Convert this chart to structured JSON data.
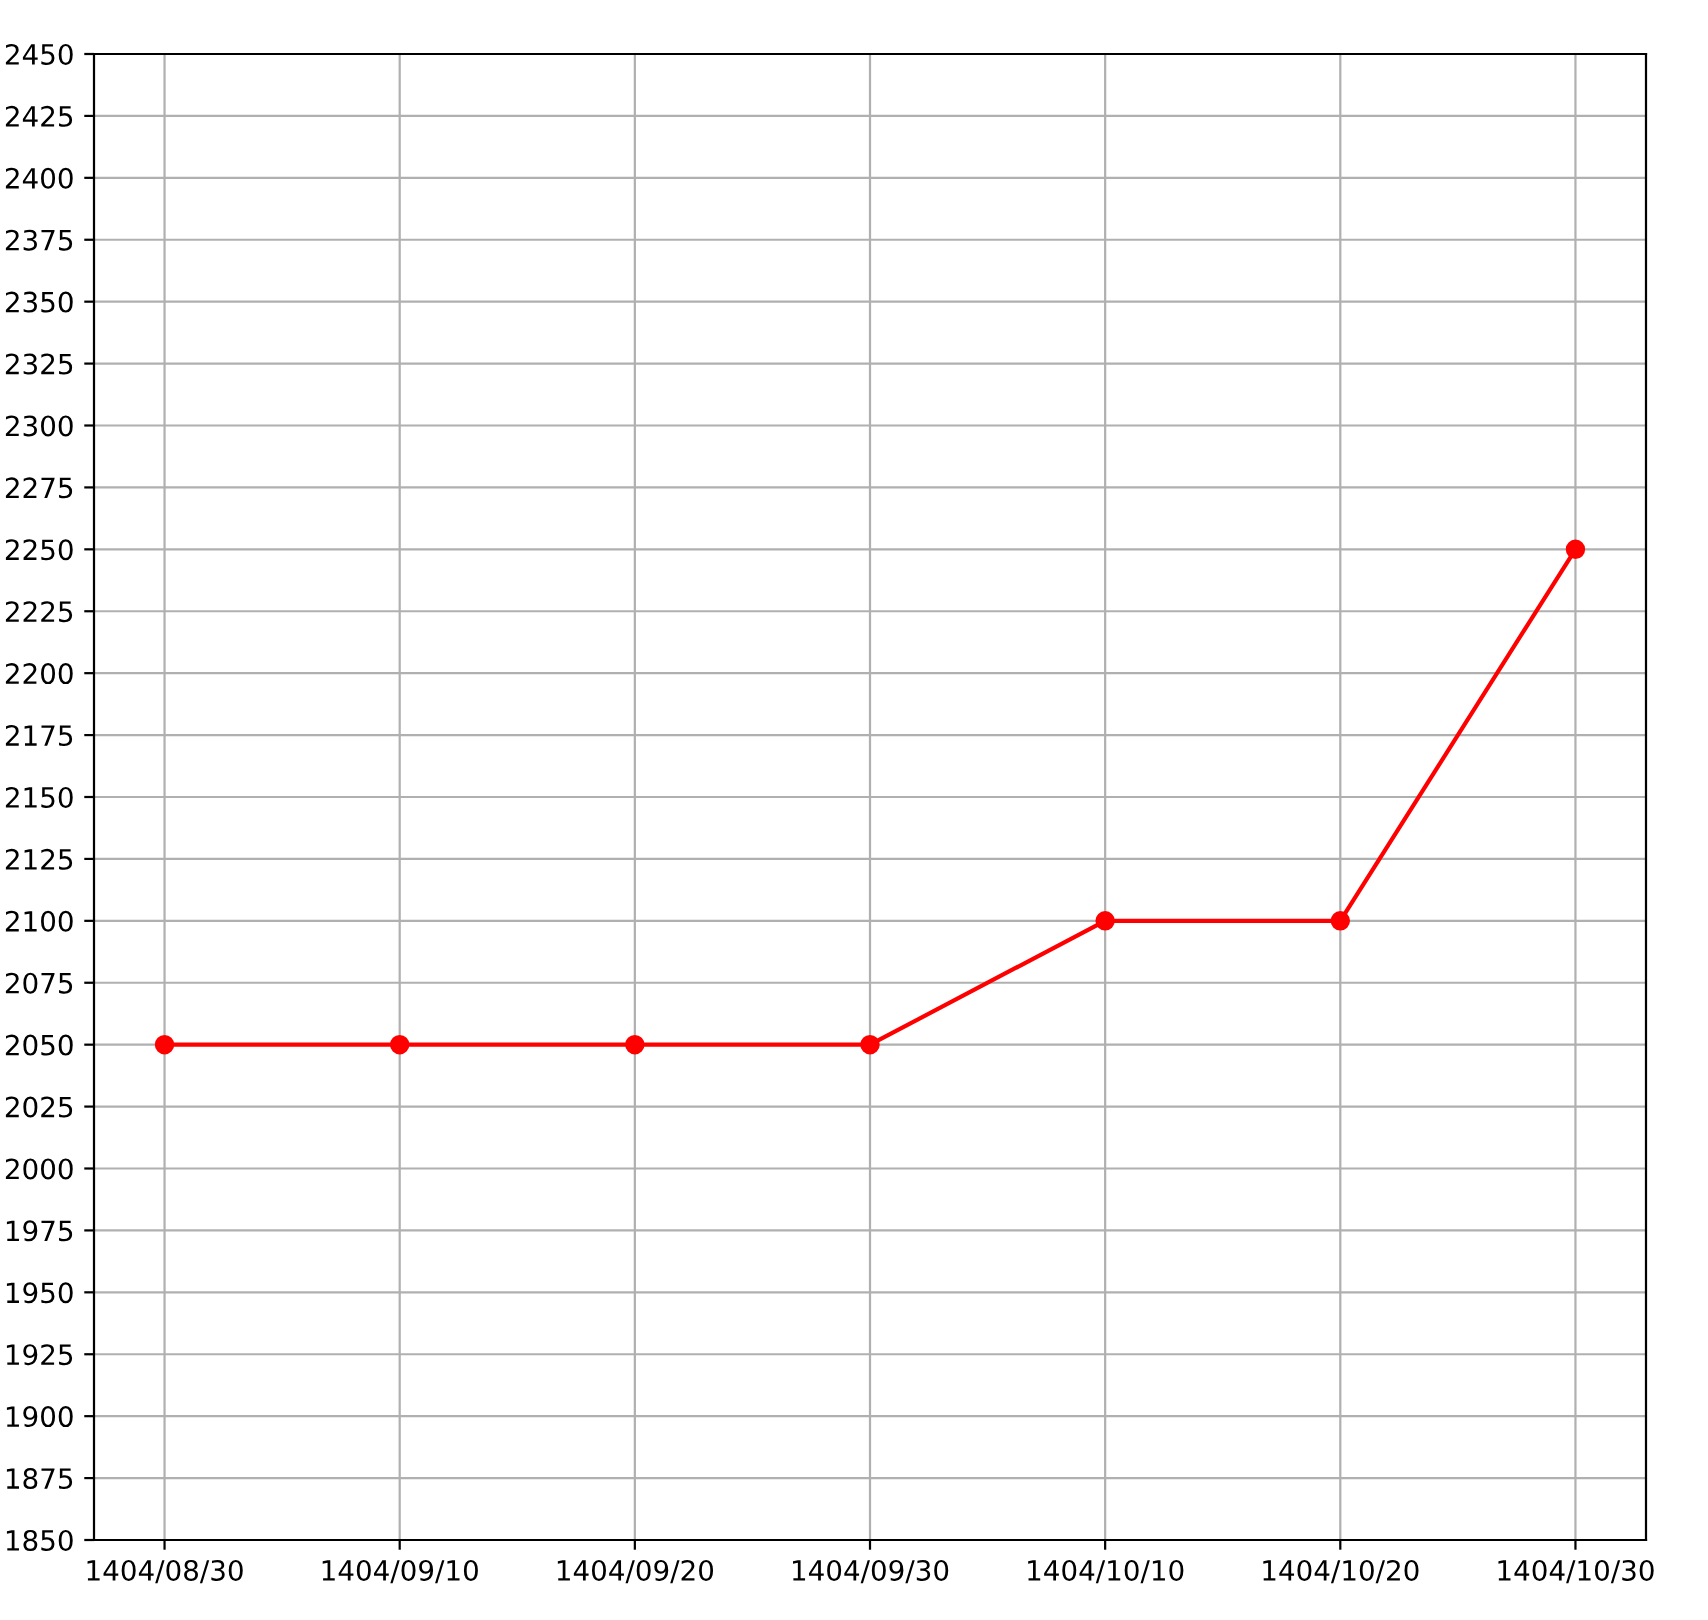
{
  "chart_data": {
    "type": "line",
    "categories": [
      "1404/08/30",
      "1404/09/10",
      "1404/09/20",
      "1404/09/30",
      "1404/10/10",
      "1404/10/20",
      "1404/10/30"
    ],
    "series": [
      {
        "color": "#ff0000",
        "values": [
          2050,
          2050,
          2050,
          2050,
          2100,
          2100,
          2250
        ]
      }
    ],
    "ylim": [
      1850,
      2450
    ],
    "yticks": [
      1850,
      1875,
      1900,
      1925,
      1950,
      1975,
      2000,
      2025,
      2050,
      2075,
      2100,
      2125,
      2150,
      2175,
      2200,
      2225,
      2250,
      2275,
      2300,
      2325,
      2350,
      2375,
      2400,
      2425,
      2450
    ],
    "grid": true,
    "marker": "circle",
    "line_style": "solid"
  }
}
